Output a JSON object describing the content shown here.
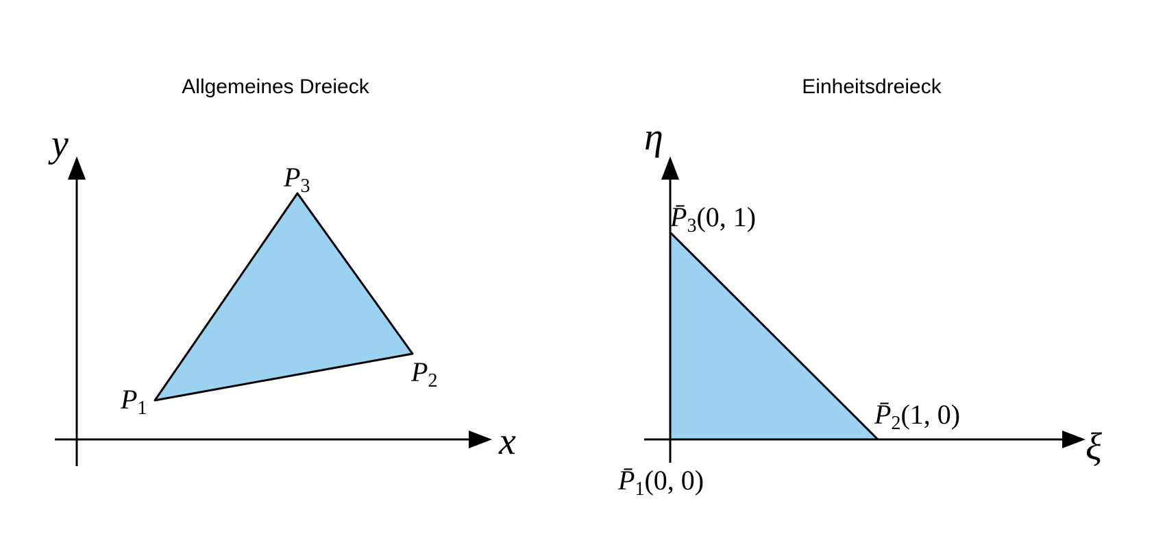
{
  "titles": {
    "left": "Allgemeines Dreieck",
    "right": "Einheitsdreieck"
  },
  "axes": {
    "left": {
      "x": "x",
      "y": "y"
    },
    "right": {
      "x": "ξ",
      "y": "η"
    }
  },
  "points_left": {
    "p1": {
      "letter": "P",
      "sub": "1"
    },
    "p2": {
      "letter": "P",
      "sub": "2"
    },
    "p3": {
      "letter": "P",
      "sub": "3"
    }
  },
  "points_right": {
    "p1": {
      "letter": "P̄",
      "sub": "1",
      "coords": "(0, 0)"
    },
    "p2": {
      "letter": "P̄",
      "sub": "2",
      "coords": "(1, 0)"
    },
    "p3": {
      "letter": "P̄",
      "sub": "3",
      "coords": "(0, 1)"
    }
  },
  "colors": {
    "fill": "#9bd1f1",
    "stroke": "#000000"
  }
}
